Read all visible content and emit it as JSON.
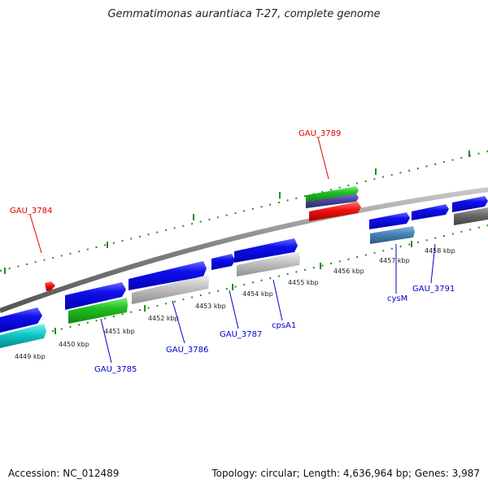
{
  "title": "Gemmatimonas aurantiaca T-27, complete genome",
  "accession": "Accession: NC_012489",
  "summary": "Topology: circular; Length: 4,636,964 bp; Genes: 3,987",
  "colors": {
    "red_label": "#dd0000",
    "blue_label": "#0000cc",
    "backbone": "#808080",
    "tick": "#228b22"
  },
  "kbp_ticks": [
    "4449 kbp",
    "4450 kbp",
    "4451 kbp",
    "4452 kbp",
    "4453 kbp",
    "4454 kbp",
    "4455 kbp",
    "4456 kbp",
    "4457 kbp",
    "4458 kbp"
  ],
  "gene_labels": [
    "GAU_3784",
    "GAU_3789",
    "GAU_3785",
    "GAU_3786",
    "GAU_3787",
    "cpsA1",
    "cysM",
    "GAU_3791"
  ]
}
